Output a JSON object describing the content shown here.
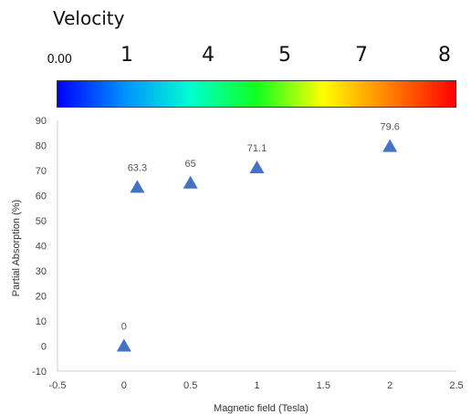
{
  "colorbar": {
    "title": "Velocity",
    "ticks": [
      "0.00",
      "1",
      "4",
      "5",
      "7",
      "8"
    ],
    "gradient_colors": [
      "#0000ff",
      "#0090ff",
      "#00ffd0",
      "#10ff20",
      "#ffff00",
      "#ff8000",
      "#ff0000"
    ]
  },
  "chart_data": {
    "type": "scatter",
    "xlabel": "Magnetic field (Tesla)",
    "ylabel": "Partial Absorption (%)",
    "xlim": [
      -0.5,
      2.5
    ],
    "ylim": [
      -10,
      90
    ],
    "xticks": [
      -0.5,
      0,
      0.5,
      1,
      1.5,
      2,
      2.5
    ],
    "yticks": [
      -10,
      0,
      10,
      20,
      30,
      40,
      50,
      60,
      70,
      80,
      90
    ],
    "xtick_labels": [
      "-0.5",
      "0",
      "0.5",
      "1",
      "1.5",
      "2",
      "2.5"
    ],
    "ytick_labels": [
      "-10",
      "0",
      "10",
      "20",
      "30",
      "40",
      "50",
      "60",
      "70",
      "80",
      "90"
    ],
    "marker": "triangle",
    "marker_color": "#4472c4",
    "points": [
      {
        "x": 0,
        "y": 0,
        "label": "0"
      },
      {
        "x": 0.1,
        "y": 63.3,
        "label": "63.3"
      },
      {
        "x": 0.5,
        "y": 65,
        "label": "65"
      },
      {
        "x": 1,
        "y": 71.1,
        "label": "71.1"
      },
      {
        "x": 2,
        "y": 79.6,
        "label": "79.6"
      }
    ]
  }
}
